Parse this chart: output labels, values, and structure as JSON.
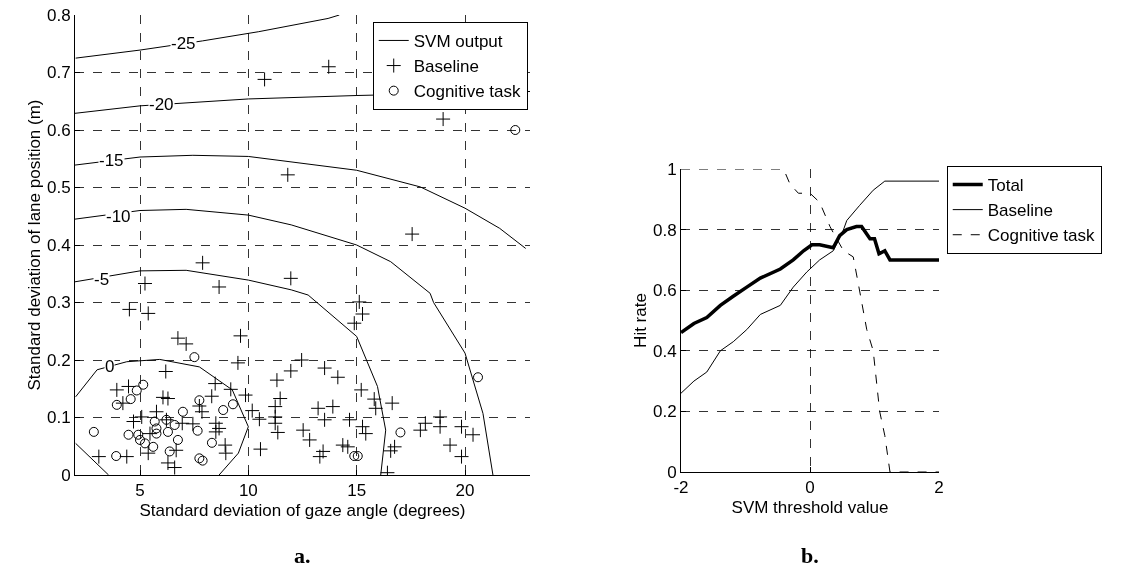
{
  "chart_data": [
    {
      "type": "scatter",
      "xlabel": "Standard deviation of gaze angle (degrees)",
      "ylabel": "Standard deviation of lane position (m)",
      "xlim": [
        2,
        23
      ],
      "ylim": [
        0,
        0.8
      ],
      "xticks": [
        5,
        10,
        15,
        20
      ],
      "yticks": [
        0,
        0.1,
        0.2,
        0.3,
        0.4,
        0.5,
        0.6,
        0.7,
        0.8
      ],
      "grid": true,
      "legend": "top right",
      "series": [
        {
          "name": "SVM output",
          "type": "line",
          "color": "#000000",
          "marker": "none",
          "line_style": "solid",
          "x": [
            2.03,
            5,
            7.89,
            10.48,
            13.68,
            14.2,
            null,
            2,
            5,
            10,
            15,
            23,
            null,
            2,
            5,
            7.44,
            10,
            15,
            17.94,
            20,
            21.6,
            22.8,
            null,
            2,
            5,
            7.13,
            10,
            11.98,
            15,
            16.57,
            18.39,
            18.55,
            20,
            20.83,
            21.29,
            null,
            2,
            5,
            7.13,
            10,
            11.98,
            12.76,
            15,
            15.96,
            16.34,
            16.11,
            null,
            3.55,
            2.03,
            null,
            2.03,
            3.02,
            4.39,
            5.91,
            7.74,
            9.26,
            10,
            9.54,
            8.65
          ],
          "values": [
            0.725,
            0.739,
            0.755,
            0.771,
            0.794,
            0.8,
            null,
            0.629,
            0.642,
            0.654,
            0.66,
            0.667,
            null,
            0.539,
            0.553,
            0.556,
            0.554,
            0.53,
            0.501,
            0.464,
            0.429,
            0.394,
            null,
            0.445,
            0.46,
            0.462,
            0.452,
            0.435,
            0.4,
            0.371,
            0.316,
            0.3,
            0.212,
            0.107,
            0,
            null,
            0.336,
            0.355,
            0.356,
            0.339,
            0.322,
            0.313,
            0.241,
            0.154,
            0.078,
            0,
            null,
            0,
            0.055,
            null,
            0.136,
            0.183,
            0.197,
            0.201,
            0.188,
            0.148,
            0.084,
            0.038,
            0
          ]
        },
        {
          "name": "Baseline",
          "type": "scatter",
          "color": "#000000",
          "marker": "cross",
          "x": [
            5.23,
            8.65,
            4.51,
            5.38,
            6.75,
            7.13,
            9.64,
            9.52,
            12.46,
            11.96,
            13.52,
            14.13,
            6.19,
            11.32,
            11.47,
            8.47,
            9.19,
            9.87,
            8.31,
            3.93,
            4.47,
            4.21,
            6.06,
            6.29,
            5.76,
            7.74,
            7.86,
            10.18,
            10.51,
            11.24,
            11.24,
            11.24,
            11.36,
            13.22,
            13.9,
            13.52,
            14.67,
            15.21,
            15.81,
            15.88,
            16.64,
            15.27,
            15.42,
            4.7,
            5.08,
            5.46,
            6.22,
            6.95,
            7.44,
            8.5,
            8.65,
            8.5,
            12.53,
            12.83,
            6.67,
            8.93,
            8.96,
            10.56,
            3.1,
            4.39,
            5.38,
            6.29,
            6.6,
            13.3,
            13.45,
            14.36,
            14.59,
            16.57,
            16.75,
            16.42,
            17.94,
            18.17,
            18.85,
            18.85,
            19.31,
            19.84,
            19.84,
            20.37,
            14.89,
            15.12,
            15.27,
            10.75,
            13.71,
            11.82,
            11.96,
            7.89,
            17.56,
            18.99
          ],
          "values": [
            0.333,
            0.327,
            0.288,
            0.281,
            0.238,
            0.228,
            0.242,
            0.195,
            0.2,
            0.181,
            0.186,
            0.17,
            0.18,
            0.165,
            0.133,
            0.159,
            0.149,
            0.139,
            0.137,
            0.148,
            0.154,
            0.125,
            0.135,
            0.133,
            0.11,
            0.12,
            0.11,
            0.112,
            0.097,
            0.119,
            0.101,
            0.09,
            0.074,
            0.116,
            0.119,
            0.096,
            0.096,
            0.148,
            0.132,
            0.116,
            0.125,
            0.084,
            0.072,
            0.093,
            0.101,
            0.072,
            0.096,
            0.09,
            0.089,
            0.09,
            0.081,
            0.075,
            0.078,
            0.061,
            0.043,
            0.052,
            0.038,
            0.045,
            0.032,
            0.032,
            0.038,
            0.021,
            0.013,
            0.032,
            0.041,
            0.052,
            0.049,
            0.042,
            0.049,
            0.004,
            0.078,
            0.09,
            0.101,
            0.084,
            0.052,
            0.084,
            0.032,
            0.07,
            0.264,
            0.301,
            0.28,
            0.688,
            0.71,
            0.522,
            0.342,
            0.369,
            0.419,
            0.619
          ]
        },
        {
          "name": "Cognitive task",
          "type": "scatter",
          "color": "#000000",
          "marker": "circle",
          "x": [
            2.87,
            3.9,
            3.93,
            4.57,
            4.85,
            5.15,
            4.47,
            4.92,
            5,
            5.23,
            5.61,
            5.68,
            5.76,
            5.76,
            6.22,
            6.29,
            6.6,
            6.37,
            6.75,
            6.98,
            7.51,
            7.74,
            7.66,
            7.74,
            7.89,
            8.32,
            8.84,
            9.29,
            15.05,
            14.89,
            17.02,
            20.6,
            22.32
          ],
          "values": [
            0.075,
            0.033,
            0.122,
            0.132,
            0.147,
            0.157,
            0.07,
            0.07,
            0.061,
            0.055,
            0.049,
            0.093,
            0.081,
            0.072,
            0.096,
            0.075,
            0.087,
            0.041,
            0.061,
            0.11,
            0.205,
            0.13,
            0.077,
            0.029,
            0.025,
            0.056,
            0.113,
            0.123,
            0.033,
            0.033,
            0.074,
            0.17,
            0.6
          ]
        }
      ],
      "annotations": [
        {
          "text": "-25",
          "x": 7.0,
          "y": 0.751
        },
        {
          "text": "-20",
          "x": 6.0,
          "y": 0.645
        },
        {
          "text": "-15",
          "x": 3.7,
          "y": 0.547
        },
        {
          "text": "-10",
          "x": 4.0,
          "y": 0.449
        },
        {
          "text": "-5",
          "x": 3.2,
          "y": 0.34
        },
        {
          "text": "0",
          "x": 3.6,
          "y": 0.189
        },
        "a."
      ]
    },
    {
      "type": "line",
      "xlabel": "SVM threshold value",
      "ylabel": "Hit rate",
      "xlim": [
        -2,
        2
      ],
      "ylim": [
        0,
        1
      ],
      "xticks": [
        -2,
        0,
        2
      ],
      "yticks": [
        0,
        0.2,
        0.4,
        0.6,
        0.8,
        1
      ],
      "grid": true,
      "legend": "top right",
      "series": [
        {
          "name": "Total",
          "color": "#000000",
          "line_style": "solid",
          "x": [
            -2,
            -1.8,
            -1.6,
            -1.39,
            -1.19,
            -0.98,
            -0.77,
            -0.46,
            -0.26,
            -0.1,
            0.03,
            0.15,
            0.36,
            0.46,
            0.57,
            0.72,
            0.8,
            0.93,
            1,
            1.07,
            1.16,
            1.24,
            2
          ],
          "values": [
            0.46,
            0.49,
            0.51,
            0.55,
            0.58,
            0.61,
            0.64,
            0.67,
            0.7,
            0.73,
            0.75,
            0.75,
            0.74,
            0.78,
            0.8,
            0.81,
            0.81,
            0.77,
            0.77,
            0.72,
            0.73,
            0.7,
            0.7
          ]
        },
        {
          "name": "Baseline",
          "color": "#000000",
          "line_style": "solid",
          "x": [
            -2,
            -1.8,
            -1.6,
            -1.39,
            -1.19,
            -0.98,
            -0.77,
            -0.46,
            -0.26,
            -0.05,
            0.15,
            0.36,
            0.52,
            0.57,
            0.77,
            0.98,
            1.16,
            2
          ],
          "values": [
            0.26,
            0.3,
            0.33,
            0.4,
            0.43,
            0.47,
            0.52,
            0.55,
            0.61,
            0.66,
            0.7,
            0.73,
            0.8,
            0.83,
            0.88,
            0.93,
            0.96,
            0.96
          ]
        },
        {
          "name": "Cognitive task",
          "color": "#000000",
          "line_style": "dashed",
          "x": [
            -2,
            -0.41,
            -0.31,
            -0.18,
            0,
            0.15,
            0.31,
            0.36,
            0.52,
            0.67,
            0.75,
            0.88,
            0.98,
            1.08,
            1.16,
            1.24,
            2
          ],
          "values": [
            1,
            1,
            0.95,
            0.92,
            0.92,
            0.89,
            0.81,
            0.79,
            0.73,
            0.71,
            0.62,
            0.47,
            0.4,
            0.2,
            0.12,
            0,
            0
          ]
        }
      ],
      "annotations": [
        "b."
      ]
    }
  ]
}
